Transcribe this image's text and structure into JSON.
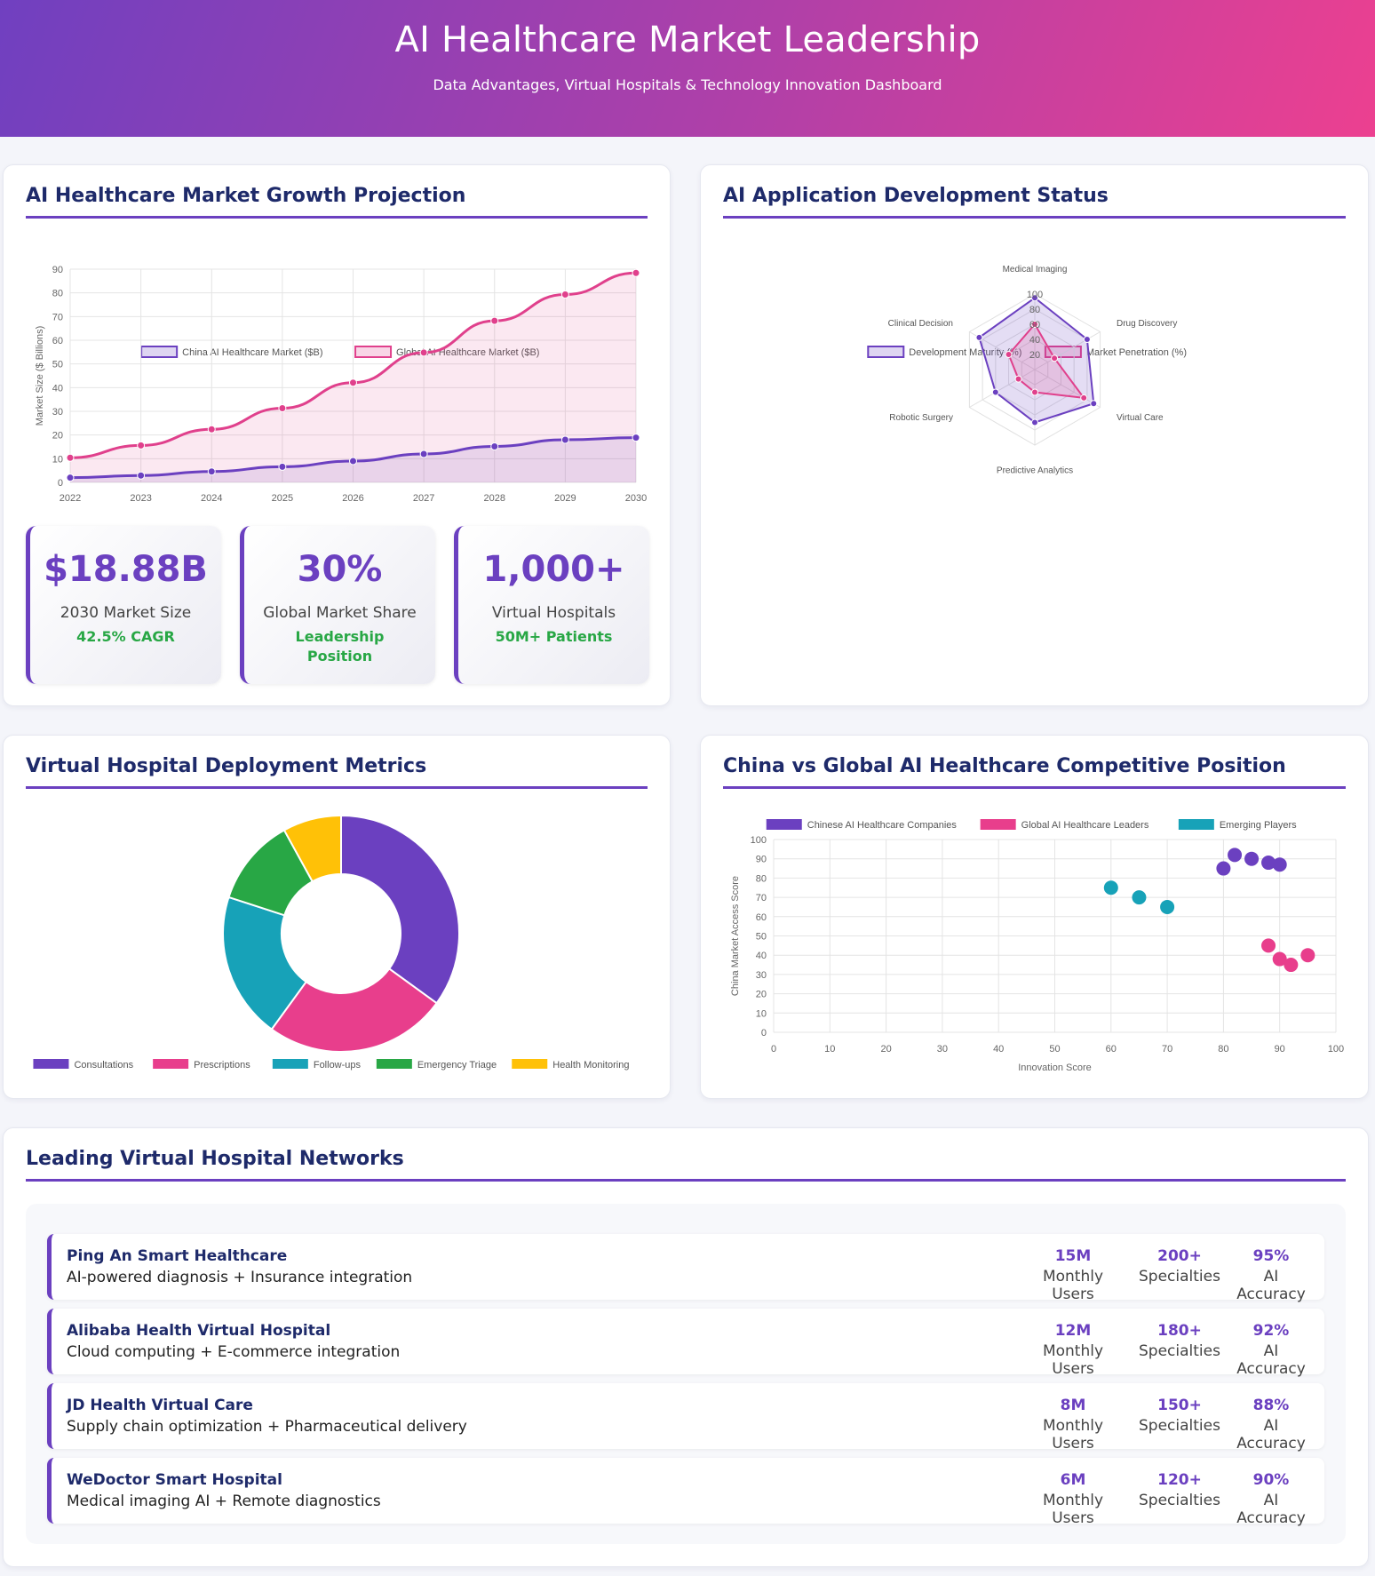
{
  "header": {
    "title": "AI Healthcare Market Leadership",
    "subtitle": "Data Advantages, Virtual Hospitals & Technology Innovation Dashboard"
  },
  "sections": {
    "growth_title": "AI Healthcare Market Growth Projection",
    "radar_title": "AI Application Development Status",
    "doughnut_title": "Virtual Hospital Deployment Metrics",
    "scatter_title": "China vs Global AI Healthcare Competitive Position",
    "networks_title": "Leading Virtual Hospital Networks"
  },
  "stats": [
    {
      "value": "$18.88B",
      "label": "2030 Market Size",
      "sub": "42.5% CAGR"
    },
    {
      "value": "30%",
      "label": "Global Market Share",
      "sub": "Leadership Position"
    },
    {
      "value": "1,000+",
      "label": "Virtual Hospitals",
      "sub": "50M+ Patients"
    }
  ],
  "networks": [
    {
      "name": "Ping An Smart Healthcare",
      "desc": "AI-powered diagnosis + Insurance integration",
      "users": "15M",
      "users_label": "Monthly Users",
      "specialties": "200+",
      "specialties_label": "Specialties",
      "accuracy": "95%",
      "accuracy_label": "AI Accuracy"
    },
    {
      "name": "Alibaba Health Virtual Hospital",
      "desc": "Cloud computing + E-commerce integration",
      "users": "12M",
      "users_label": "Monthly Users",
      "specialties": "180+",
      "specialties_label": "Specialties",
      "accuracy": "92%",
      "accuracy_label": "AI Accuracy"
    },
    {
      "name": "JD Health Virtual Care",
      "desc": "Supply chain optimization + Pharmaceutical delivery",
      "users": "8M",
      "users_label": "Monthly Users",
      "specialties": "150+",
      "specialties_label": "Specialties",
      "accuracy": "88%",
      "accuracy_label": "AI Accuracy"
    },
    {
      "name": "WeDoctor Smart Hospital",
      "desc": "Medical imaging AI + Remote diagnostics",
      "users": "6M",
      "users_label": "Monthly Users",
      "specialties": "120+",
      "specialties_label": "Specialties",
      "accuracy": "90%",
      "accuracy_label": "AI Accuracy"
    }
  ],
  "chart_data": [
    {
      "type": "line",
      "title": "",
      "x": [
        "2022",
        "2023",
        "2024",
        "2025",
        "2026",
        "2027",
        "2028",
        "2029",
        "2030"
      ],
      "ylabel": "Market Size ($ Billions)",
      "ylim": [
        0,
        90
      ],
      "yticks": [
        0,
        10,
        20,
        30,
        40,
        50,
        60,
        70,
        80,
        90
      ],
      "grid": true,
      "legend": "top",
      "series": [
        {
          "name": "China AI Healthcare Market ($B)",
          "color": "#6b40c0",
          "values": [
            2.0,
            2.9,
            4.6,
            6.6,
            9.0,
            12.0,
            15.2,
            18.0,
            18.88
          ]
        },
        {
          "name": "Global AI Healthcare Market ($B)",
          "color": "#e0408c",
          "values": [
            10.4,
            15.6,
            22.4,
            31.3,
            42.1,
            54.8,
            68.2,
            79.3,
            88.4
          ]
        }
      ]
    },
    {
      "type": "radar",
      "title": "",
      "axes": [
        "Medical Imaging",
        "Drug Discovery",
        "Virtual Care",
        "Predictive Analytics",
        "Robotic Surgery",
        "Clinical Decision"
      ],
      "rticks": [
        20,
        40,
        60,
        80,
        100
      ],
      "rlim": [
        0,
        100
      ],
      "legend": "top",
      "series": [
        {
          "name": "Development Maturity (%)",
          "color": "#6b40c0",
          "values": [
            95,
            80,
            90,
            70,
            60,
            85
          ]
        },
        {
          "name": "Market Penetration (%)",
          "color": "#e0408c",
          "values": [
            60,
            30,
            75,
            30,
            25,
            40
          ]
        }
      ]
    },
    {
      "type": "pie",
      "title": "",
      "doughnut": true,
      "legend": "bottom",
      "categories": [
        "Consultations",
        "Prescriptions",
        "Follow-ups",
        "Emergency Triage",
        "Health Monitoring"
      ],
      "values": [
        35,
        25,
        20,
        12,
        8
      ],
      "colors": [
        "#6b40c0",
        "#e83e8c",
        "#17a2b8",
        "#28a745",
        "#ffc107"
      ]
    },
    {
      "type": "scatter",
      "title": "",
      "xlabel": "Innovation Score",
      "ylabel": "China Market Access Score",
      "xlim": [
        0,
        100
      ],
      "ylim": [
        0,
        100
      ],
      "ticks": [
        0,
        10,
        20,
        30,
        40,
        50,
        60,
        70,
        80,
        90,
        100
      ],
      "grid": true,
      "legend": "top",
      "series": [
        {
          "name": "Chinese AI Healthcare Companies",
          "color": "#6b40c0",
          "points": [
            [
              80,
              85
            ],
            [
              82,
              92
            ],
            [
              85,
              90
            ],
            [
              88,
              88
            ],
            [
              90,
              87
            ]
          ]
        },
        {
          "name": "Global AI Healthcare Leaders",
          "color": "#e83e8c",
          "points": [
            [
              88,
              45
            ],
            [
              90,
              38
            ],
            [
              92,
              35
            ],
            [
              95,
              40
            ]
          ]
        },
        {
          "name": "Emerging Players",
          "color": "#17a2b8",
          "points": [
            [
              60,
              75
            ],
            [
              65,
              70
            ],
            [
              70,
              65
            ]
          ]
        }
      ]
    }
  ]
}
